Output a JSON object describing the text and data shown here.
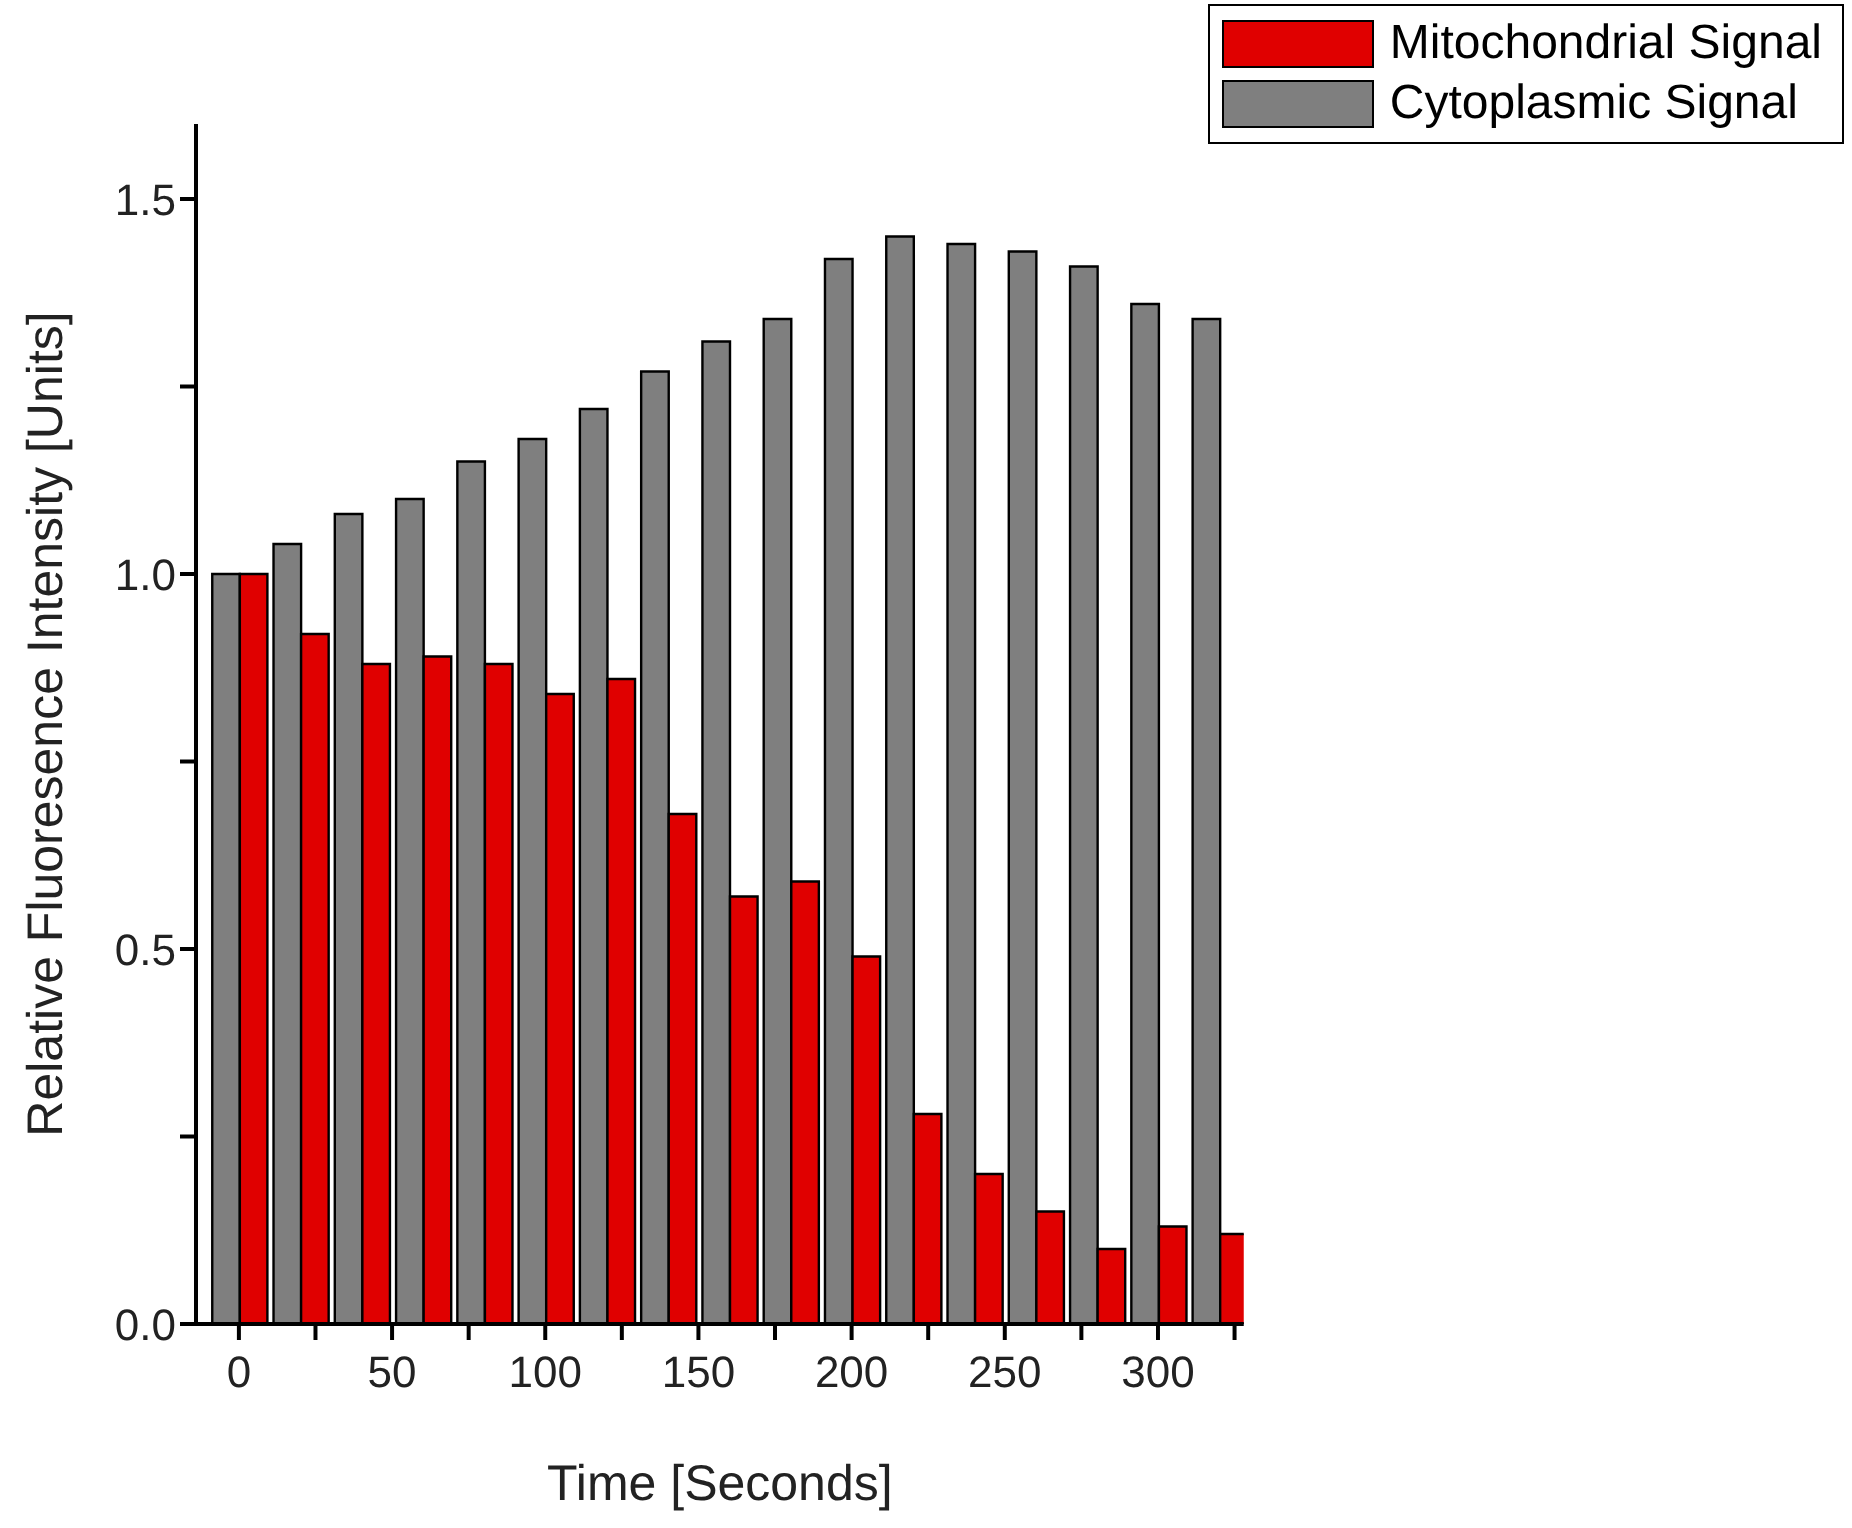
{
  "chart_data": {
    "type": "bar",
    "xlabel": "Time [Seconds]",
    "ylabel": "Relative Fluoresence Intensity [Units]",
    "x": [
      0,
      20,
      40,
      60,
      80,
      100,
      120,
      140,
      160,
      180,
      200,
      220,
      240,
      260,
      280,
      300,
      320
    ],
    "series": [
      {
        "name": "Cytoplasmic Signal",
        "color": "#7f7f7f",
        "values": [
          1.0,
          1.04,
          1.08,
          1.1,
          1.15,
          1.18,
          1.22,
          1.27,
          1.31,
          1.34,
          1.42,
          1.45,
          1.44,
          1.43,
          1.41,
          1.36,
          1.34
        ]
      },
      {
        "name": "Mitochondrial Signal",
        "color": "#e00000",
        "values": [
          1.0,
          0.92,
          0.88,
          0.89,
          0.88,
          0.84,
          0.86,
          0.68,
          0.57,
          0.59,
          0.49,
          0.28,
          0.2,
          0.15,
          0.1,
          0.13,
          0.12
        ]
      }
    ],
    "xlim": [
      -14,
      328
    ],
    "xticks": [
      0,
      {
        "value": 25,
        "label": null
      },
      50,
      {
        "value": 75,
        "label": null
      },
      100,
      {
        "value": 125,
        "label": null
      },
      150,
      {
        "value": 175,
        "label": null
      },
      200,
      {
        "value": 225,
        "label": null
      },
      250,
      {
        "value": 275,
        "label": null
      },
      300,
      {
        "value": 325,
        "label": null
      }
    ],
    "ylim": [
      0,
      1.6
    ],
    "yticks": [
      {
        "value": 0,
        "label": "0.0"
      },
      {
        "value": 0.25,
        "label": null
      },
      0.5,
      {
        "value": 0.75,
        "label": null
      },
      {
        "value": 1,
        "label": "1.0"
      },
      {
        "value": 1.25,
        "label": null
      },
      1.5
    ],
    "grid": false,
    "legend": "top right"
  }
}
